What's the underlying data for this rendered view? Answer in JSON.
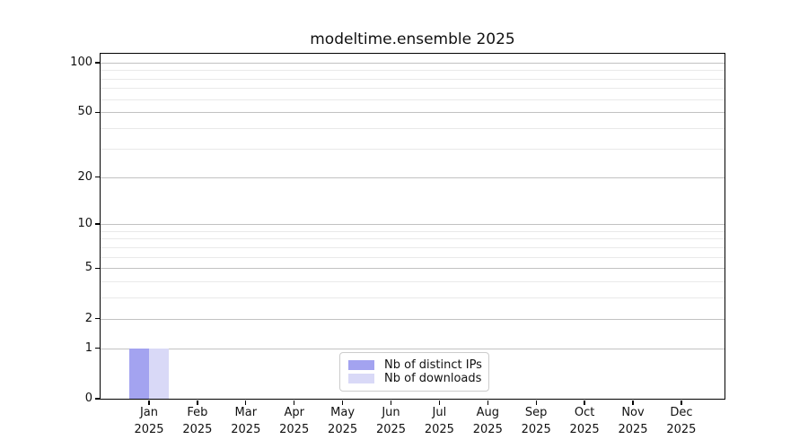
{
  "chart_data": {
    "type": "bar",
    "title": "modeltime.ensemble 2025",
    "categories": [
      "Jan",
      "Feb",
      "Mar",
      "Apr",
      "May",
      "Jun",
      "Jul",
      "Aug",
      "Sep",
      "Oct",
      "Nov",
      "Dec"
    ],
    "x_year_label": "2025",
    "series": [
      {
        "name": "Nb of distinct IPs",
        "color": "#a3a3f0",
        "values": [
          1,
          0,
          0,
          0,
          0,
          0,
          0,
          0,
          0,
          0,
          0,
          0
        ]
      },
      {
        "name": "Nb of downloads",
        "color": "#d9d9f7",
        "values": [
          1,
          0,
          0,
          0,
          0,
          0,
          0,
          0,
          0,
          0,
          0,
          0
        ]
      }
    ],
    "xlabel": "",
    "ylabel": "",
    "yscale": "log1p",
    "ylim": [
      0,
      113
    ],
    "y_major_ticks": [
      0,
      1,
      2,
      5,
      10,
      20,
      50,
      100
    ],
    "y_minor_ticks": [
      3,
      4,
      6,
      7,
      8,
      9,
      30,
      40,
      60,
      70,
      80,
      90
    ],
    "grid": "horizontal-major-and-minor",
    "legend_position": "inside-bottom-center"
  }
}
